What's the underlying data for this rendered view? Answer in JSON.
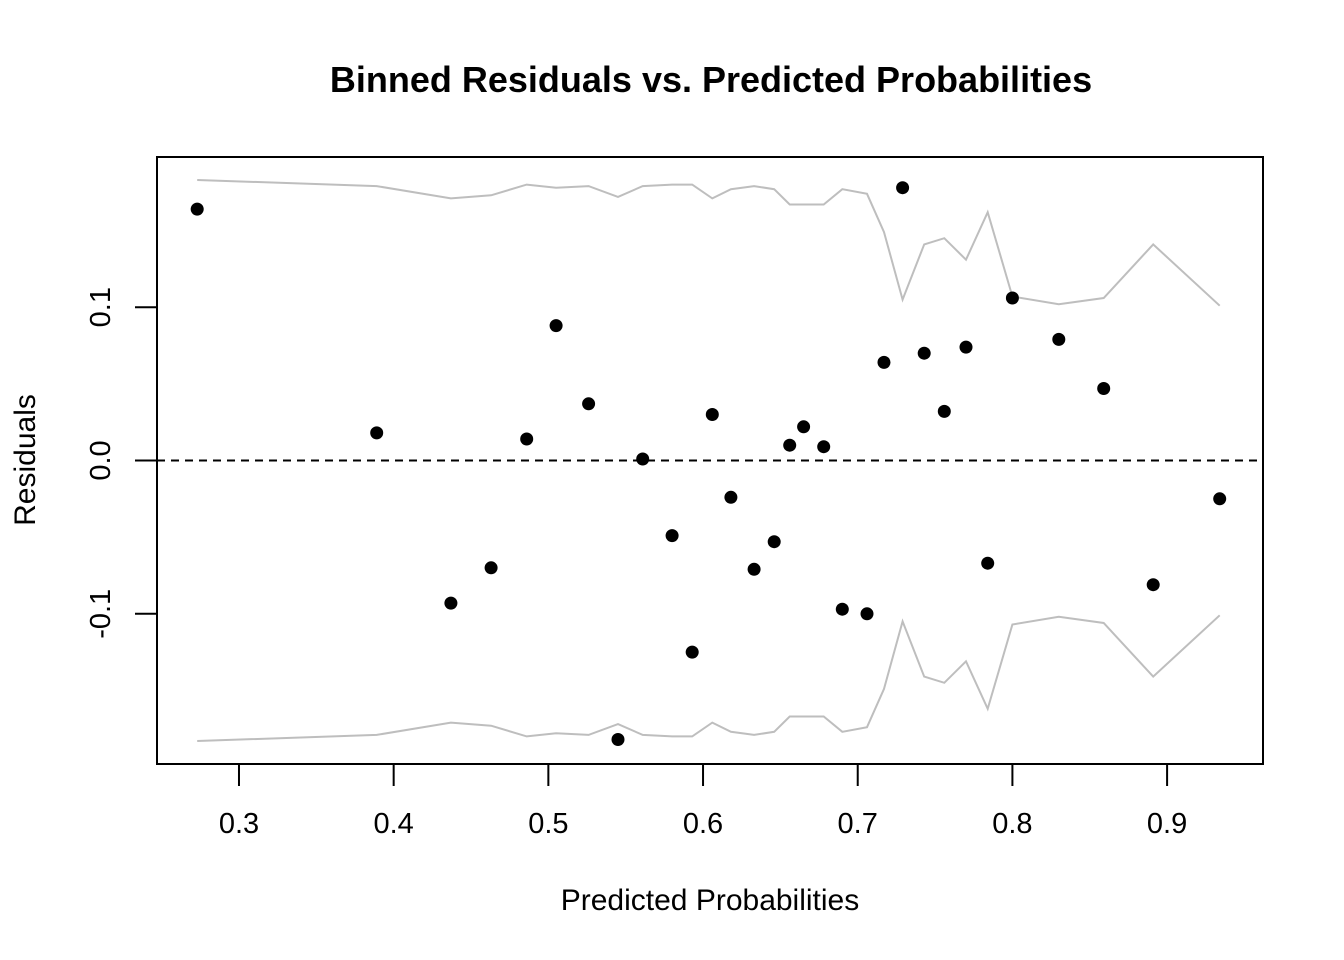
{
  "chart_data": {
    "type": "scatter",
    "title": "Binned Residuals vs. Predicted Probabilities",
    "xlabel": "Predicted Probabilities",
    "ylabel": "Residuals",
    "xlim": [
      0.247,
      0.962
    ],
    "ylim": [
      -0.198,
      0.198
    ],
    "x_ticks": [
      {
        "value": 0.3,
        "label": "0.3"
      },
      {
        "value": 0.4,
        "label": "0.4"
      },
      {
        "value": 0.5,
        "label": "0.5"
      },
      {
        "value": 0.6,
        "label": "0.6"
      },
      {
        "value": 0.7,
        "label": "0.7"
      },
      {
        "value": 0.8,
        "label": "0.8"
      },
      {
        "value": 0.9,
        "label": "0.9"
      }
    ],
    "y_ticks": [
      {
        "value": -0.1,
        "label": "-0.1"
      },
      {
        "value": 0.0,
        "label": "0.0"
      },
      {
        "value": 0.1,
        "label": "0.1"
      }
    ],
    "reference_line": {
      "y": 0,
      "style": "dashed",
      "color": "#000000"
    },
    "point_color": "#000000",
    "band_color": "#bebebe",
    "points": [
      {
        "x": 0.273,
        "y": 0.164
      },
      {
        "x": 0.389,
        "y": 0.018
      },
      {
        "x": 0.437,
        "y": -0.093
      },
      {
        "x": 0.463,
        "y": -0.07
      },
      {
        "x": 0.486,
        "y": 0.014
      },
      {
        "x": 0.505,
        "y": 0.088
      },
      {
        "x": 0.526,
        "y": 0.037
      },
      {
        "x": 0.545,
        "y": -0.182
      },
      {
        "x": 0.561,
        "y": 0.001
      },
      {
        "x": 0.58,
        "y": -0.049
      },
      {
        "x": 0.593,
        "y": -0.125
      },
      {
        "x": 0.606,
        "y": 0.03
      },
      {
        "x": 0.618,
        "y": -0.024
      },
      {
        "x": 0.633,
        "y": -0.071
      },
      {
        "x": 0.646,
        "y": -0.053
      },
      {
        "x": 0.656,
        "y": 0.01
      },
      {
        "x": 0.665,
        "y": 0.022
      },
      {
        "x": 0.678,
        "y": 0.009
      },
      {
        "x": 0.69,
        "y": -0.097
      },
      {
        "x": 0.706,
        "y": -0.1
      },
      {
        "x": 0.717,
        "y": 0.064
      },
      {
        "x": 0.729,
        "y": 0.178
      },
      {
        "x": 0.743,
        "y": 0.07
      },
      {
        "x": 0.756,
        "y": 0.032
      },
      {
        "x": 0.77,
        "y": 0.074
      },
      {
        "x": 0.784,
        "y": -0.067
      },
      {
        "x": 0.8,
        "y": 0.106
      },
      {
        "x": 0.83,
        "y": 0.079
      },
      {
        "x": 0.859,
        "y": 0.047
      },
      {
        "x": 0.891,
        "y": -0.081
      },
      {
        "x": 0.934,
        "y": -0.025
      }
    ],
    "band": [
      {
        "x": 0.273,
        "y": 0.183
      },
      {
        "x": 0.389,
        "y": 0.179
      },
      {
        "x": 0.437,
        "y": 0.171
      },
      {
        "x": 0.463,
        "y": 0.173
      },
      {
        "x": 0.486,
        "y": 0.18
      },
      {
        "x": 0.505,
        "y": 0.178
      },
      {
        "x": 0.526,
        "y": 0.179
      },
      {
        "x": 0.545,
        "y": 0.172
      },
      {
        "x": 0.561,
        "y": 0.179
      },
      {
        "x": 0.58,
        "y": 0.18
      },
      {
        "x": 0.593,
        "y": 0.18
      },
      {
        "x": 0.606,
        "y": 0.171
      },
      {
        "x": 0.618,
        "y": 0.177
      },
      {
        "x": 0.633,
        "y": 0.179
      },
      {
        "x": 0.646,
        "y": 0.177
      },
      {
        "x": 0.656,
        "y": 0.167
      },
      {
        "x": 0.665,
        "y": 0.167
      },
      {
        "x": 0.678,
        "y": 0.167
      },
      {
        "x": 0.69,
        "y": 0.177
      },
      {
        "x": 0.706,
        "y": 0.174
      },
      {
        "x": 0.717,
        "y": 0.149
      },
      {
        "x": 0.729,
        "y": 0.105
      },
      {
        "x": 0.743,
        "y": 0.141
      },
      {
        "x": 0.756,
        "y": 0.145
      },
      {
        "x": 0.77,
        "y": 0.131
      },
      {
        "x": 0.784,
        "y": 0.162
      },
      {
        "x": 0.8,
        "y": 0.107
      },
      {
        "x": 0.83,
        "y": 0.102
      },
      {
        "x": 0.859,
        "y": 0.106
      },
      {
        "x": 0.891,
        "y": 0.141
      },
      {
        "x": 0.934,
        "y": 0.101
      }
    ],
    "grid": false,
    "legend": "none"
  }
}
